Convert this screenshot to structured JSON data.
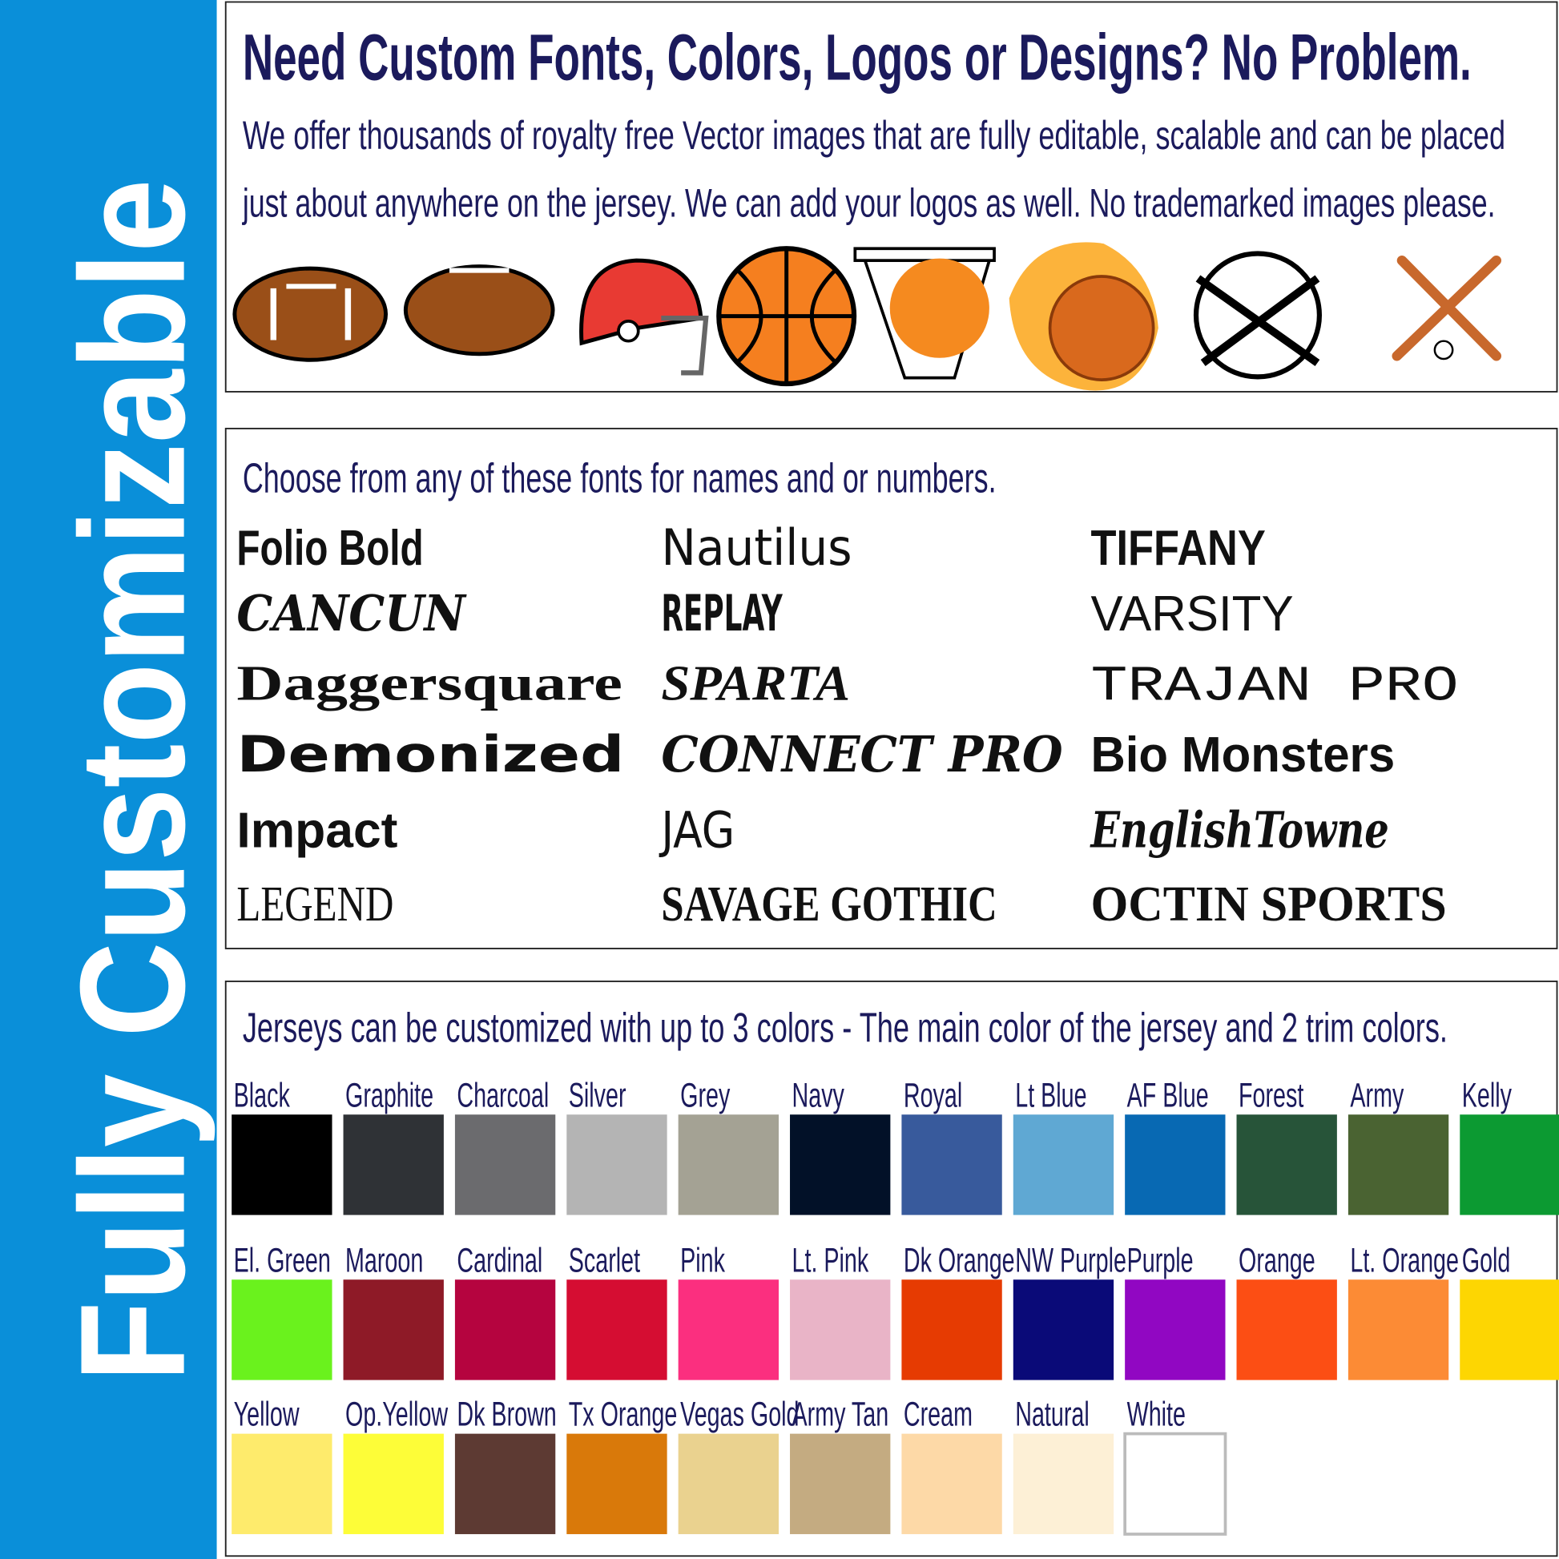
{
  "sidebar": {
    "title": "Fully Customizable"
  },
  "graphics": {
    "title": "Need Custom Fonts, Colors, Logos or Designs? No Problem.",
    "lines": [
      "We offer thousands of royalty free Vector images that are fully editable, scalable and can be placed",
      "just about anywhere on the jersey.  We can add your logos as well.  No trademarked images please."
    ]
  },
  "fonts": {
    "heading": "Choose from any of these fonts for names and or numbers.",
    "columns": [
      [
        "Folio Bold",
        "CANCUN",
        "Daggersquare",
        "Demonized",
        "Impact",
        "LEGEND"
      ],
      [
        "Nautilus",
        "REPLAY",
        "SPARTA",
        "CONNECT PRO",
        "JAG",
        "SAVAGE GOTHIC"
      ],
      [
        "TIFFANY",
        "VARSITY",
        "TRAJAN PRO",
        "Bio Monsters",
        "EnglishTowne",
        "OCTIN SPORTS"
      ]
    ]
  },
  "colors": {
    "heading": "Jerseys can be customized with up to 3 colors - The main color of the jersey and 2 trim colors.",
    "rows": [
      [
        {
          "name": "Black",
          "color": "#000000"
        },
        {
          "name": "Graphite",
          "color": "#2f3236"
        },
        {
          "name": "Charcoal",
          "color": "#6b6b6e"
        },
        {
          "name": "Silver",
          "color": "#b4b4b4"
        },
        {
          "name": "Grey",
          "color": "#a4a294"
        },
        {
          "name": "Navy",
          "color": "#021128"
        },
        {
          "name": "Royal",
          "color": "#385a9c"
        },
        {
          "name": "Lt Blue",
          "color": "#5fa8d3"
        },
        {
          "name": "AF Blue",
          "color": "#0869b3"
        },
        {
          "name": "Forest",
          "color": "#275439"
        },
        {
          "name": "Army",
          "color": "#4a6332"
        },
        {
          "name": "Kelly",
          "color": "#0c9a32"
        }
      ],
      [
        {
          "name": "El. Green",
          "color": "#6af21d"
        },
        {
          "name": "Maroon",
          "color": "#8e1a27"
        },
        {
          "name": "Cardinal",
          "color": "#b5043f"
        },
        {
          "name": "Scarlet",
          "color": "#d50d32"
        },
        {
          "name": "Pink",
          "color": "#fb2f7f"
        },
        {
          "name": "Lt. Pink",
          "color": "#e9b4c7"
        },
        {
          "name": "Dk Orange",
          "color": "#e63b02"
        },
        {
          "name": "NW Purple",
          "color": "#0a0a78"
        },
        {
          "name": "Purple",
          "color": "#9107c2"
        },
        {
          "name": "Orange",
          "color": "#fc4e14"
        },
        {
          "name": "Lt. Orange",
          "color": "#fc8b35"
        },
        {
          "name": "Gold",
          "color": "#fdd602"
        }
      ],
      [
        {
          "name": "Yellow",
          "color": "#feeb6c"
        },
        {
          "name": "Op.Yellow",
          "color": "#fdfd38"
        },
        {
          "name": "Dk Brown",
          "color": "#5d3a33"
        },
        {
          "name": "Tx Orange",
          "color": "#d9790a"
        },
        {
          "name": "Vegas Gold",
          "color": "#ead28f"
        },
        {
          "name": "Army Tan",
          "color": "#c4ab81"
        },
        {
          "name": "Cream",
          "color": "#fdd9a7"
        },
        {
          "name": "Natural",
          "color": "#fdf0d6"
        },
        {
          "name": "White",
          "color": "#ffffff"
        }
      ]
    ]
  }
}
